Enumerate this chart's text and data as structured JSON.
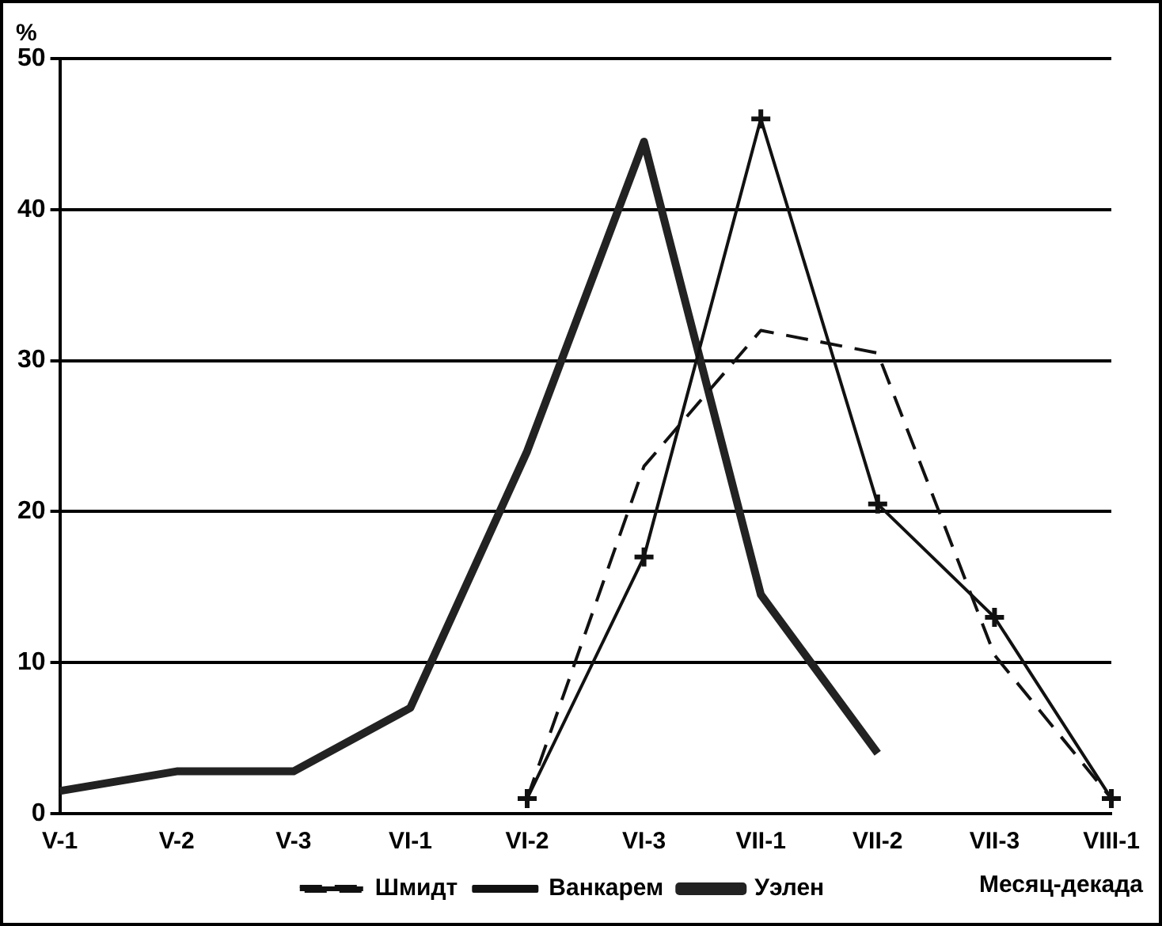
{
  "chart_data": {
    "type": "line",
    "ylabel": "%",
    "xlabel": "Месяц-декада",
    "categories": [
      "V-1",
      "V-2",
      "V-3",
      "VI-1",
      "VI-2",
      "VI-3",
      "VII-1",
      "VII-2",
      "VII-3",
      "VIII-1"
    ],
    "series": [
      {
        "name": "Шмидт",
        "color": "#111111",
        "line_style": "dashed",
        "marker": "none",
        "values": [
          null,
          null,
          null,
          null,
          1,
          23,
          32,
          30.5,
          10.5,
          1
        ]
      },
      {
        "name": "Ванкарем",
        "color": "#111111",
        "line_style": "solid",
        "marker": "cross",
        "values": [
          null,
          null,
          null,
          null,
          1,
          17,
          46,
          20.5,
          13,
          1
        ]
      },
      {
        "name": "Уэлен",
        "color": "#222222",
        "line_style": "solid",
        "marker": "none",
        "values": [
          1.5,
          2.8,
          2.8,
          7,
          24,
          44.5,
          14.5,
          4,
          null,
          null
        ]
      }
    ],
    "ylim": [
      0,
      50
    ],
    "yticks": [
      0,
      10,
      20,
      30,
      40,
      50
    ],
    "grid": "y",
    "legend": "bottom"
  }
}
